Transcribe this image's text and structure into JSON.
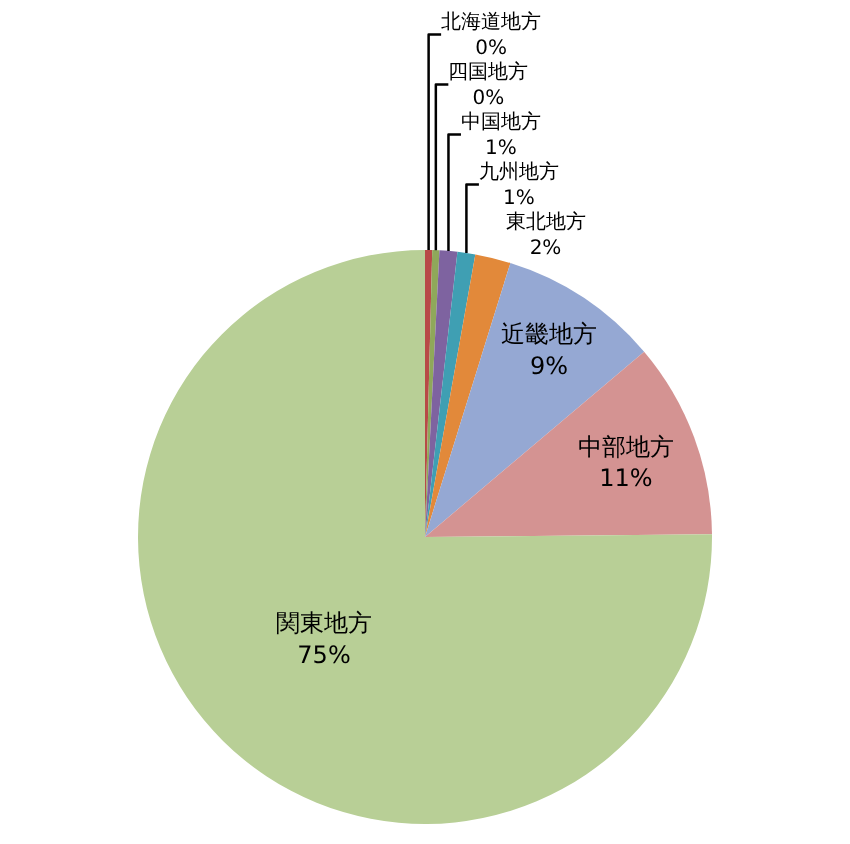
{
  "chart_data": {
    "type": "pie",
    "categories": [
      "北海道地方",
      "四国地方",
      "中国地方",
      "九州地方",
      "東北地方",
      "近畿地方",
      "中部地方",
      "関東地方"
    ],
    "values": [
      0.4,
      0.4,
      1,
      1,
      2,
      9,
      11,
      75
    ],
    "value_labels": [
      "0%",
      "0%",
      "1%",
      "1%",
      "2%",
      "9%",
      "11%",
      "75%"
    ],
    "colors": [
      "#b84a47",
      "#8fa85a",
      "#7e63a0",
      "#3f9fb3",
      "#e2893a",
      "#95a8d3",
      "#d49392",
      "#b8cf96"
    ],
    "legend": false
  }
}
